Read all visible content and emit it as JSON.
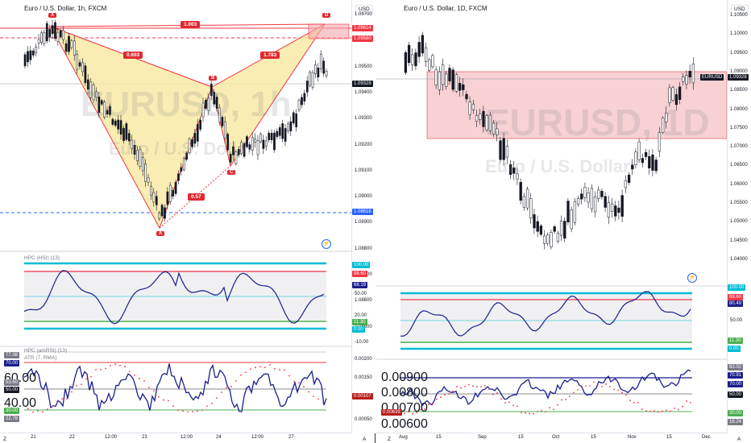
{
  "left": {
    "title": "Euro / U.S. Dollar, 1h, FXCM",
    "watermark_symbol": "EURUSD, 1h",
    "watermark_name": "Euro / U.S. Dollar",
    "currency": "USD",
    "price_ticks": [
      "1.09700",
      "1.09600",
      "1.09500",
      "1.09400",
      "1.09300",
      "1.09200",
      "1.09100",
      "1.09000",
      "1.08900",
      "1.08800",
      "1.08700",
      "1.08600",
      "1.08500"
    ],
    "price_tags": [
      {
        "text": "1.09614",
        "color": "#f23645"
      },
      {
        "text": "1.09580",
        "color": "#f23645"
      },
      {
        "text": "EURUSD",
        "color": "#131722"
      },
      {
        "text": "1.09328",
        "color": "#131722"
      },
      {
        "text": "1.08616",
        "color": "#2962ff"
      }
    ],
    "pattern_points": [
      "X",
      "B",
      "C",
      "D",
      "A"
    ],
    "ratios": [
      "1.003",
      "0.693",
      "1.783",
      "0.57"
    ],
    "hsi": {
      "label": "HPC (HSI) (13)",
      "ticks": [
        "100.00",
        "88.60",
        "68.19",
        "50.00",
        "20.00",
        "11.30",
        "0.00",
        "-10.00"
      ]
    },
    "amrsi": {
      "label1": "HPC (amRSI) (13)",
      "label2": "ATR (7, RMA)",
      "left_ticks": [
        "77.38",
        "70.00",
        "60.00",
        "53.60",
        "50.00",
        "40.00",
        "30.00",
        "22.78"
      ],
      "right_ticks": [
        "0.00200",
        "0.00150",
        "0.00107",
        "0.00100",
        "0.00050"
      ]
    },
    "time_labels": [
      "21",
      "22",
      "12:00",
      "23",
      "12:00",
      "24",
      "12:00",
      "27"
    ],
    "zoom": "Z",
    "auto": "A"
  },
  "right": {
    "title": "Euro / U.S. Dollar, 1D, FXCM",
    "watermark_symbol": "EURUSD, 1D",
    "watermark_name": "Euro / U.S. Dollar",
    "currency": "USD",
    "price_ticks": [
      "1.10500",
      "1.10000",
      "1.09500",
      "1.09000",
      "1.08500",
      "1.08000",
      "1.07500",
      "1.07000",
      "1.06500",
      "1.06000",
      "1.05500",
      "1.05000",
      "1.04500",
      "1.04000"
    ],
    "price_tags": [
      {
        "text": "EURUSD",
        "color": "#131722"
      },
      {
        "text": "1.09328",
        "color": "#131722"
      }
    ],
    "hsi": {
      "ticks": [
        "100.00",
        "88.60",
        "80.49",
        "50.00",
        "11.30",
        "0.00"
      ]
    },
    "amrsi": {
      "left_ticks": [
        "0.00900",
        "0.00800",
        "0.00700",
        "0.00639",
        "0.00600"
      ],
      "right_ticks": [
        "82.02",
        "70.91",
        "70.00",
        "50.00",
        "30.00",
        "16.24"
      ]
    },
    "time_labels": [
      "Aug",
      "15",
      "Sep",
      "15",
      "Oct",
      "15",
      "Nov",
      "15",
      "Dec"
    ],
    "zoom": "Z",
    "auto": "A"
  },
  "colors": {
    "up": "#ffffff",
    "down": "#131722",
    "pattern_fill": "#f7e9a0",
    "pattern_line": "#f23645",
    "zone_fill": "#f4c2c6",
    "hsi_line": "#1a1f8c",
    "band_top": "#00bcd4",
    "band_red": "#f23645",
    "band_green": "#4caf50"
  }
}
